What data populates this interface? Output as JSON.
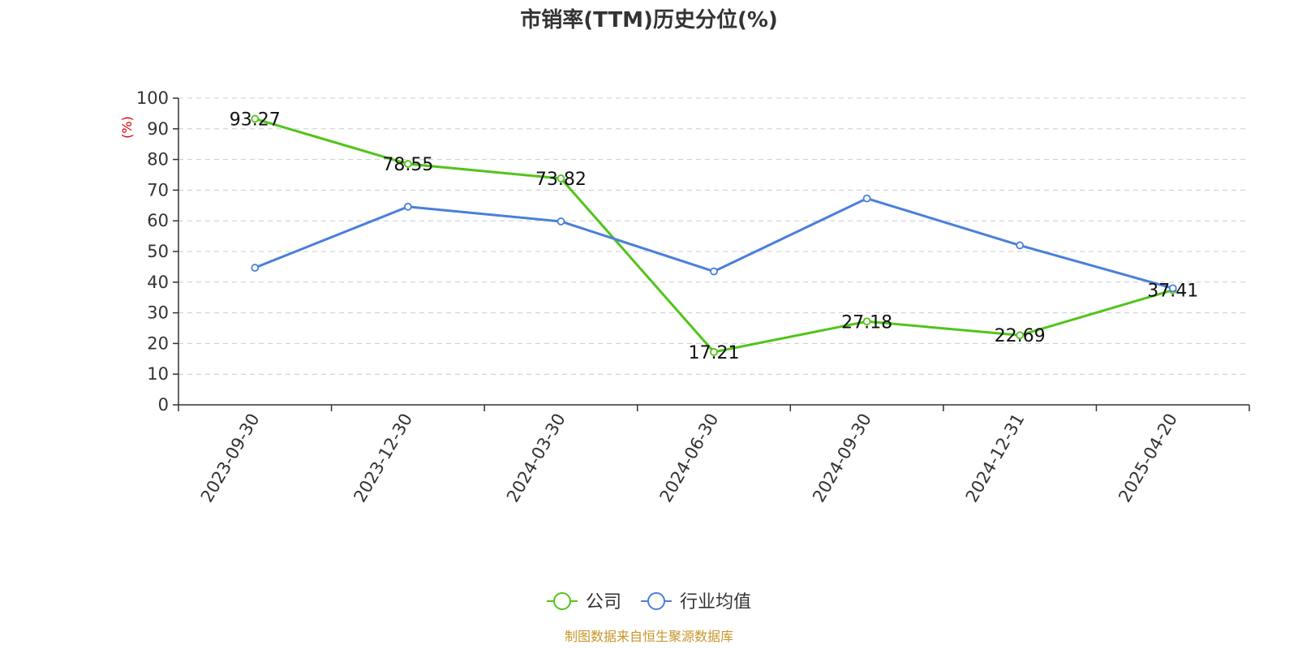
{
  "chart_data": {
    "type": "line",
    "title": "市销率(TTM)历史分位(%)",
    "ylabel": "(%)",
    "ylim": [
      0,
      100
    ],
    "yticks": [
      0,
      10,
      20,
      30,
      40,
      50,
      60,
      70,
      80,
      90,
      100
    ],
    "categories": [
      "2023-09-30",
      "2023-12-30",
      "2024-03-30",
      "2024-06-30",
      "2024-09-30",
      "2024-12-31",
      "2025-04-20"
    ],
    "series": [
      {
        "name": "公司",
        "color": "#52c41a",
        "values": [
          93.27,
          78.55,
          73.82,
          17.21,
          27.18,
          22.69,
          37.41
        ],
        "labels": [
          "93.27",
          "78.55",
          "73.82",
          "17.21",
          "27.18",
          "22.69",
          "37.41"
        ]
      },
      {
        "name": "行业均值",
        "color": "#4a7fdb",
        "values": [
          44.7,
          64.6,
          59.8,
          43.5,
          67.3,
          52.0,
          38.0
        ]
      }
    ],
    "grid": true,
    "legend_position": "bottom-center",
    "source": "制图数据来自恒生聚源数据库"
  }
}
